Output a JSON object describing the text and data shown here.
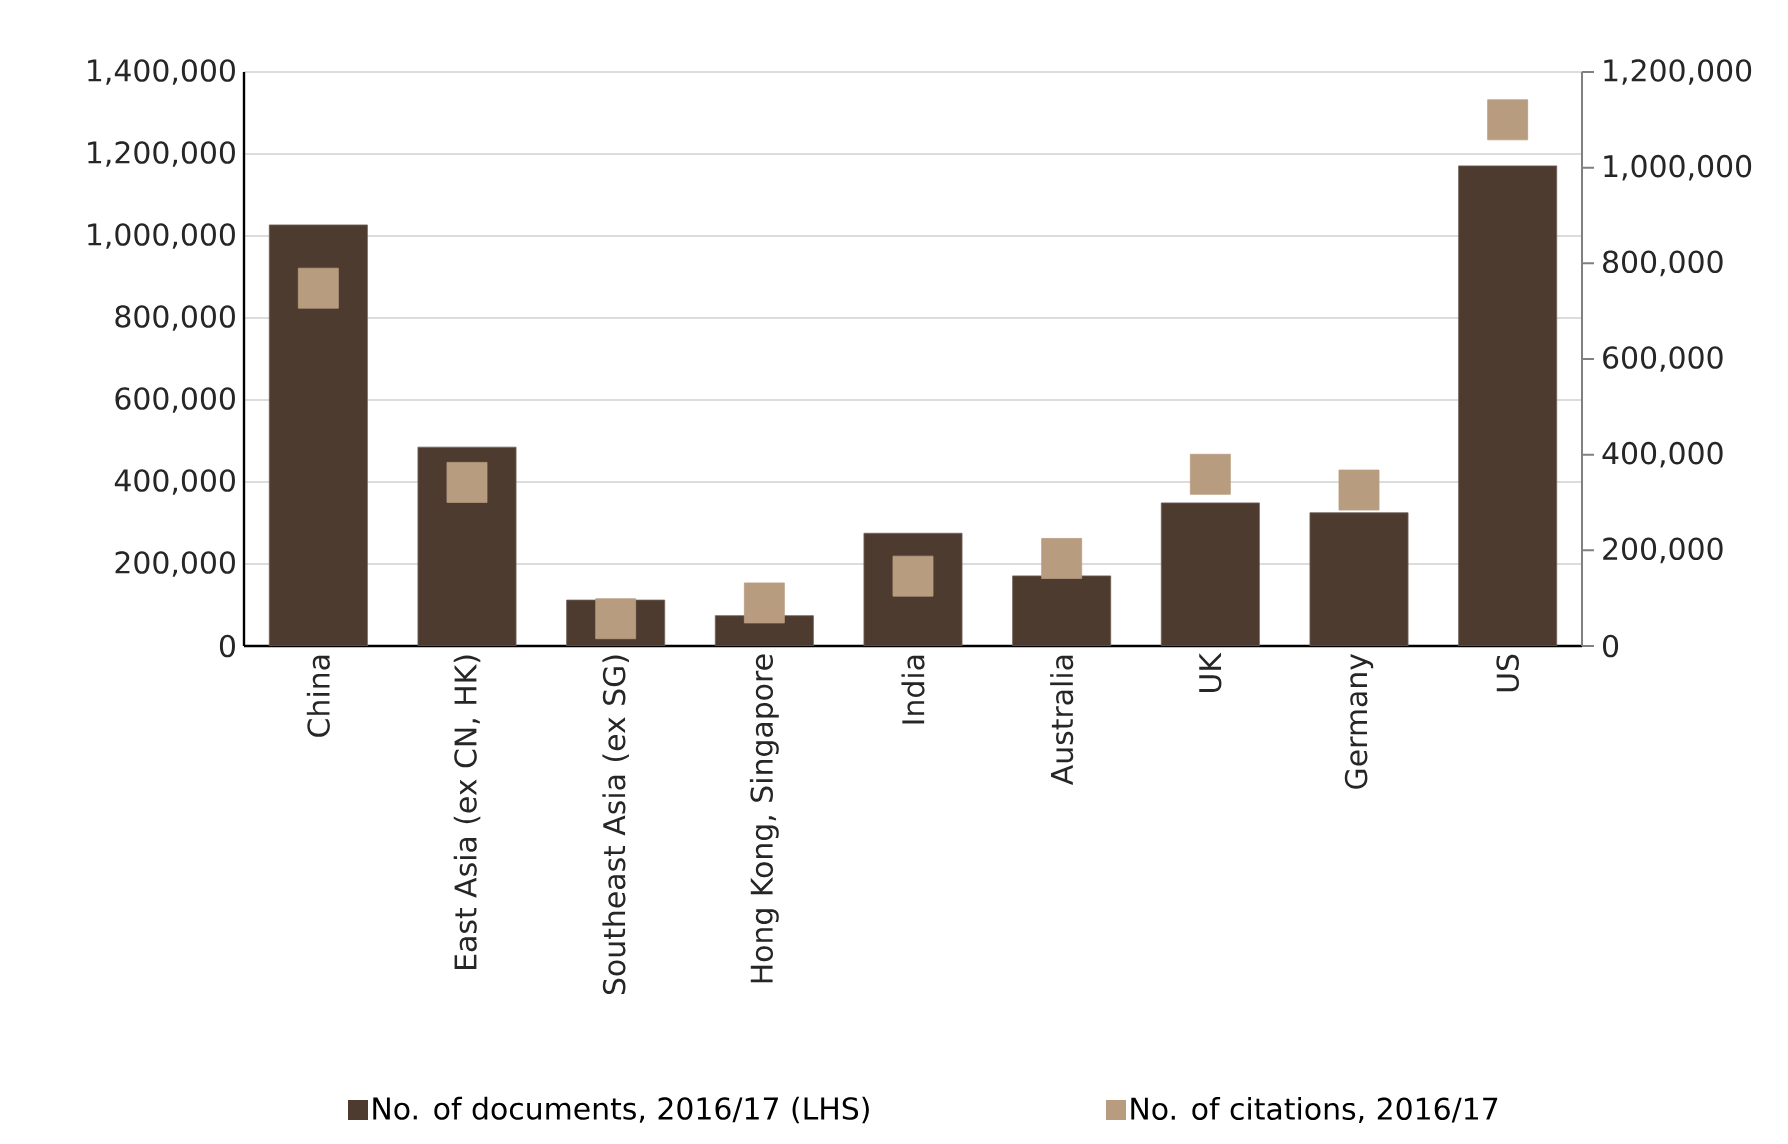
{
  "chart_data": {
    "type": "bar",
    "categories": [
      "China",
      "East Asia (ex CN, HK)",
      "Southeast Asia (ex SG)",
      "Hong Kong, Singapore",
      "India",
      "Australia",
      "UK",
      "Germany",
      "US"
    ],
    "series": [
      {
        "name": "No. of documents, 2016/17 (LHS)",
        "color": "#4e3b30",
        "values": [
          1027000,
          485000,
          112000,
          74000,
          275000,
          171000,
          349000,
          325000,
          1171000
        ]
      },
      {
        "name": "No. of citations, 2016/17",
        "type": "scatter",
        "axis": "y2",
        "color": "#b89c80",
        "values": [
          748000,
          342000,
          57000,
          90000,
          146000,
          183000,
          359000,
          326000,
          1100000
        ]
      }
    ],
    "ylim": [
      0,
      1400000
    ],
    "yticks": [
      {
        "value": 0,
        "label": "0"
      },
      {
        "value": 200000,
        "label": "200,000"
      },
      {
        "value": 400000,
        "label": "400,000"
      },
      {
        "value": 600000,
        "label": "600,000"
      },
      {
        "value": 800000,
        "label": "800,000"
      },
      {
        "value": 1000000,
        "label": "1,000,000"
      },
      {
        "value": 1200000,
        "label": "1,200,000"
      },
      {
        "value": 1400000,
        "label": "1,400,000"
      }
    ],
    "y2lim": [
      0,
      1200000
    ],
    "y2ticks": [
      {
        "value": 0,
        "label": "0"
      },
      {
        "value": 200000,
        "label": "200,000"
      },
      {
        "value": 400000,
        "label": "400,000"
      },
      {
        "value": 600000,
        "label": "600,000"
      },
      {
        "value": 800000,
        "label": "800,000"
      },
      {
        "value": 1000000,
        "label": "1,000,000"
      },
      {
        "value": 1200000,
        "label": "1,200,000"
      }
    ],
    "grid": "y",
    "legend": "bottom",
    "marker": "square"
  }
}
